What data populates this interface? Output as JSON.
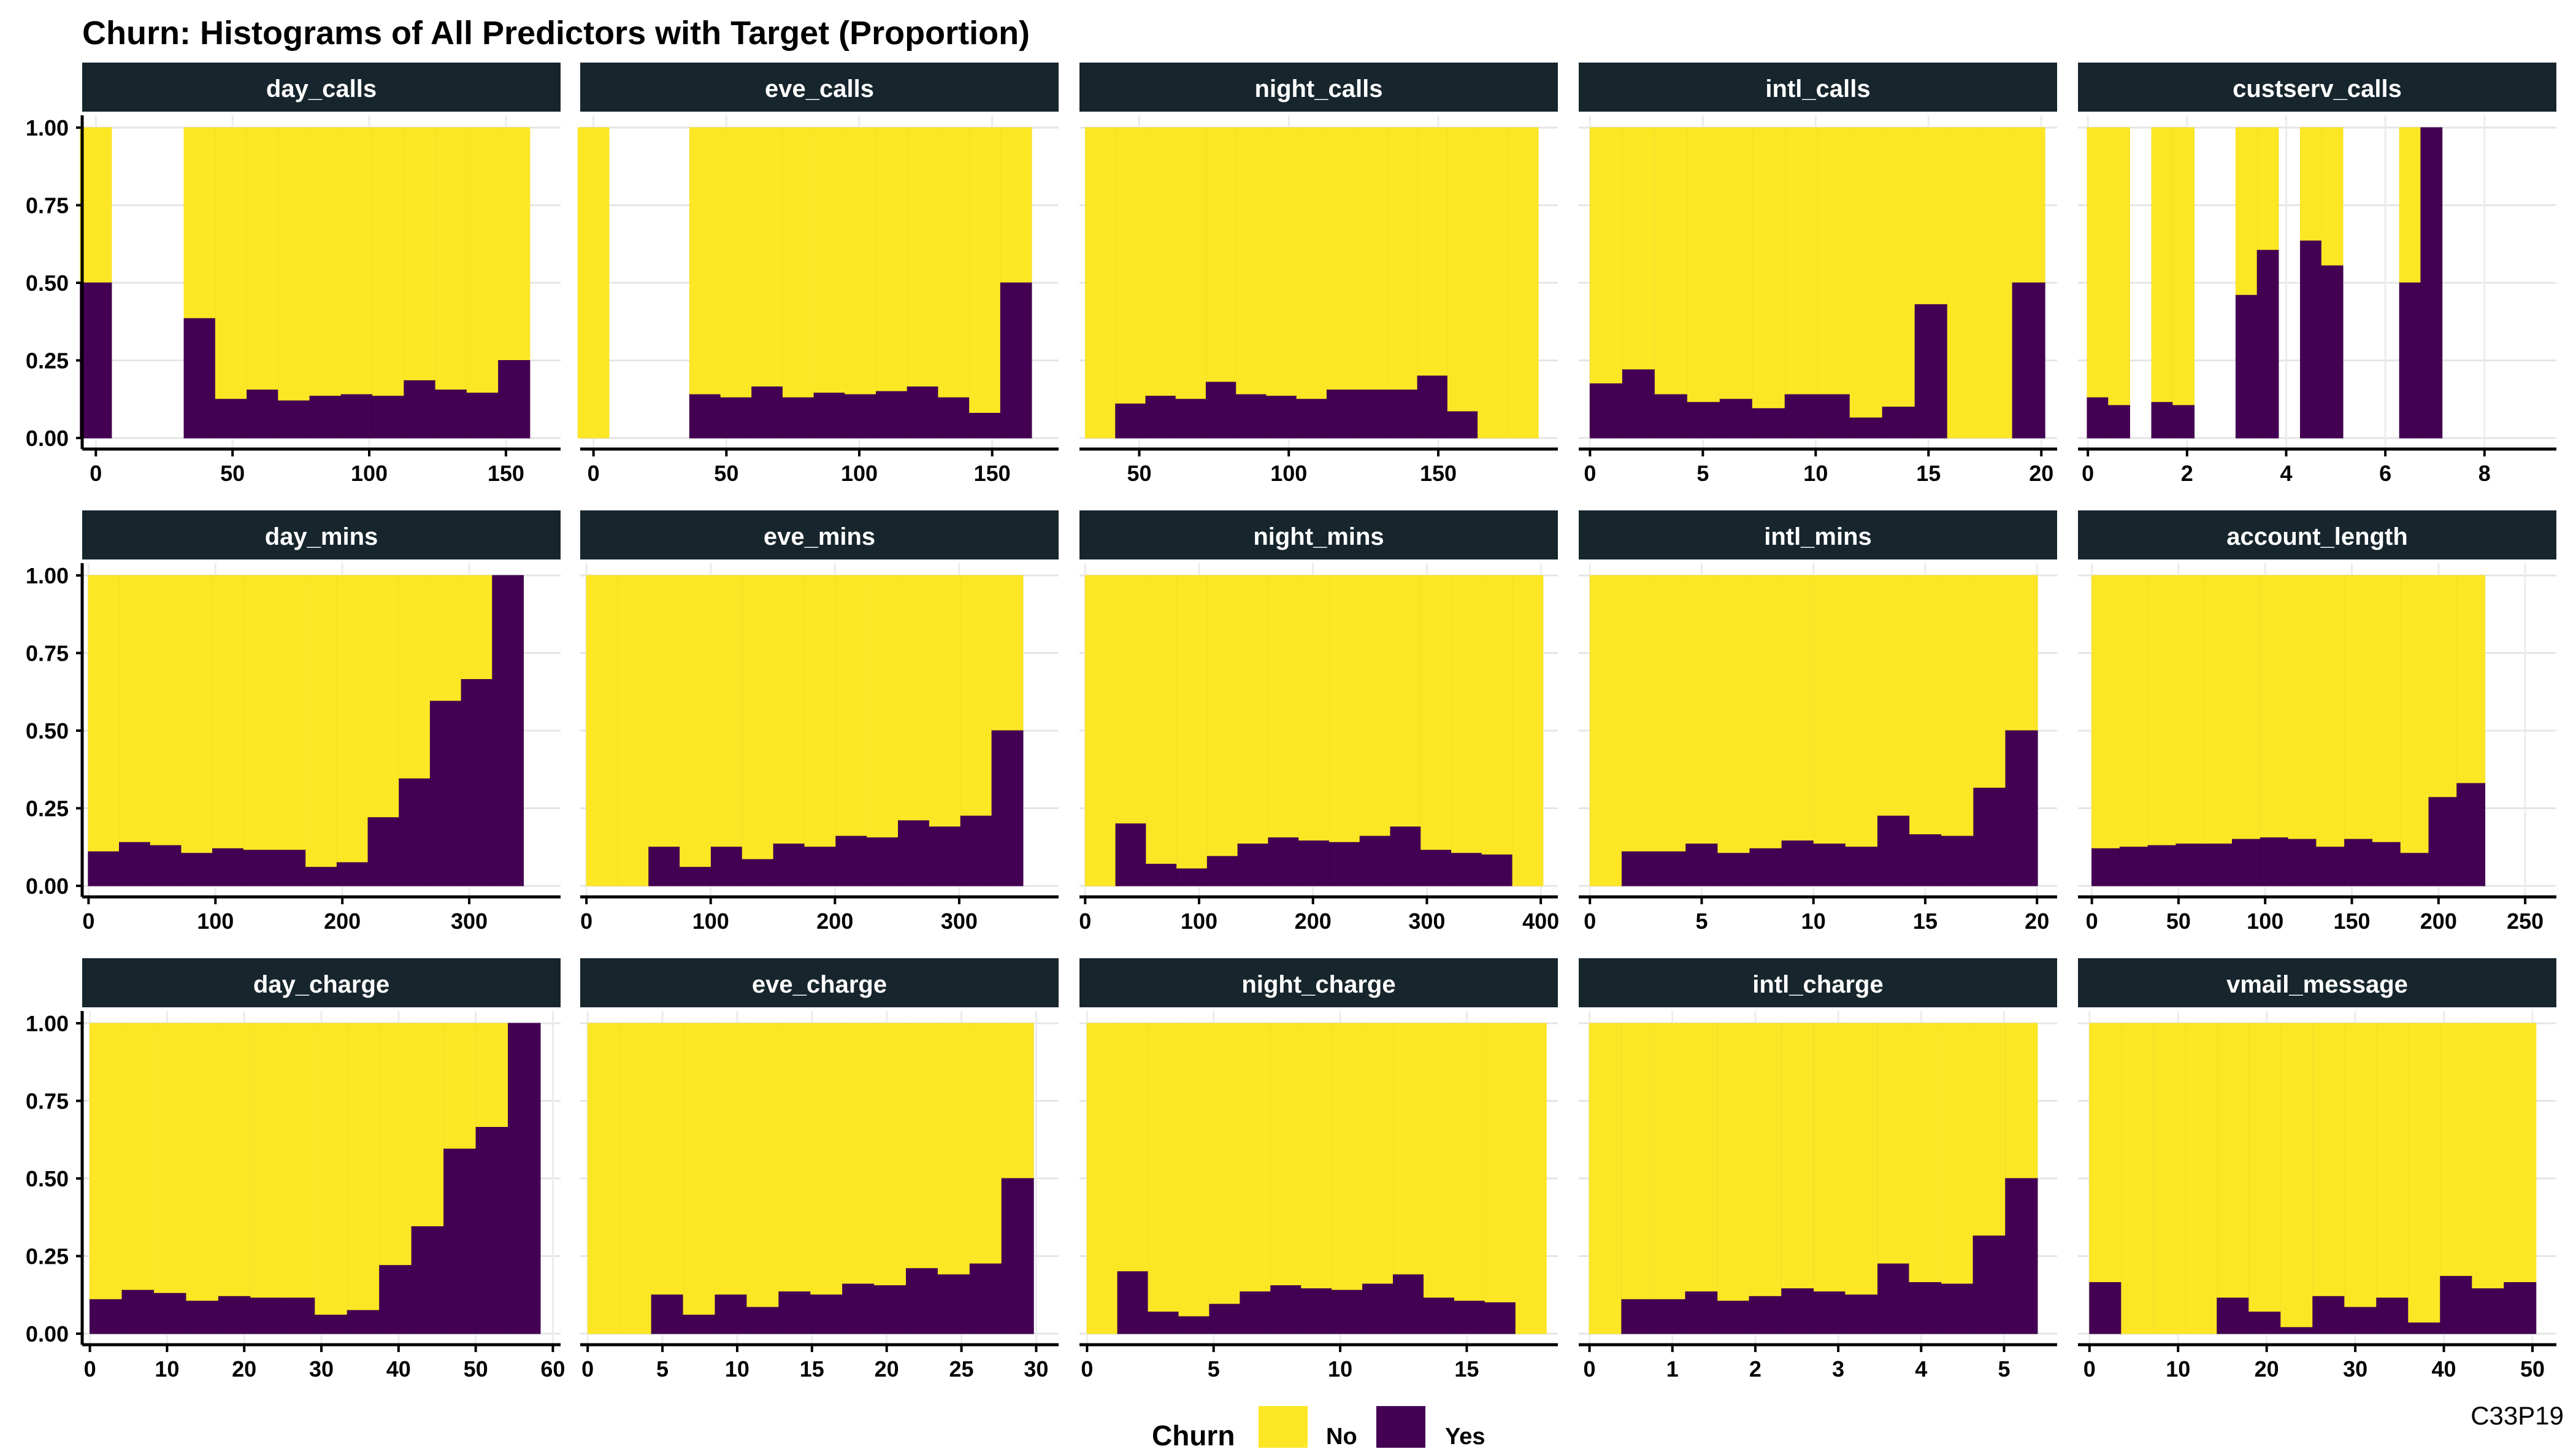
{
  "title": "Churn: Histograms of All Predictors with Target (Proportion)",
  "caption": "C33P19",
  "legend": {
    "title": "Churn",
    "items": [
      {
        "label": "No",
        "color": "#FDE725"
      },
      {
        "label": "Yes",
        "color": "#440154"
      }
    ]
  },
  "chart_data": [
    {
      "type": "bar",
      "panel": "day_calls",
      "xlim": [
        -5,
        170
      ],
      "ylim": [
        0,
        1
      ],
      "xticks": [
        0,
        50,
        100,
        150
      ],
      "yticks": [
        0,
        0.25,
        0.5,
        0.75,
        1
      ],
      "bin_width": 11.5,
      "bins": [
        {
          "x": 0,
          "yes": 0.5
        },
        {
          "x": 38,
          "yes": 0.385
        },
        {
          "x": 49.5,
          "yes": 0.125
        },
        {
          "x": 61,
          "yes": 0.155
        },
        {
          "x": 72.5,
          "yes": 0.12
        },
        {
          "x": 84,
          "yes": 0.135
        },
        {
          "x": 95.5,
          "yes": 0.14
        },
        {
          "x": 107,
          "yes": 0.135
        },
        {
          "x": 118.5,
          "yes": 0.185
        },
        {
          "x": 130,
          "yes": 0.155
        },
        {
          "x": 141.5,
          "yes": 0.145
        },
        {
          "x": 153,
          "yes": 0.25
        }
      ]
    },
    {
      "type": "bar",
      "panel": "eve_calls",
      "xlim": [
        -5,
        175
      ],
      "ylim": [
        0,
        1
      ],
      "xticks": [
        0,
        50,
        100,
        150
      ],
      "yticks": [
        0,
        0.25,
        0.5,
        0.75,
        1
      ],
      "bin_width": 11.7,
      "bins": [
        {
          "x": 0,
          "yes": 0.0
        },
        {
          "x": 42,
          "yes": 0.14
        },
        {
          "x": 53.7,
          "yes": 0.13
        },
        {
          "x": 65.4,
          "yes": 0.165
        },
        {
          "x": 77.1,
          "yes": 0.13
        },
        {
          "x": 88.8,
          "yes": 0.145
        },
        {
          "x": 100.5,
          "yes": 0.14
        },
        {
          "x": 112.2,
          "yes": 0.15
        },
        {
          "x": 123.9,
          "yes": 0.165
        },
        {
          "x": 135.6,
          "yes": 0.13
        },
        {
          "x": 147.3,
          "yes": 0.08
        },
        {
          "x": 159,
          "yes": 0.5
        }
      ]
    },
    {
      "type": "bar",
      "panel": "night_calls",
      "xlim": [
        30,
        190
      ],
      "ylim": [
        0,
        1
      ],
      "xticks": [
        50,
        100,
        150
      ],
      "yticks": [
        0,
        0.25,
        0.5,
        0.75,
        1
      ],
      "bin_width": 10.1,
      "bins": [
        {
          "x": 37,
          "yes": 0.0
        },
        {
          "x": 47.1,
          "yes": 0.11
        },
        {
          "x": 57.2,
          "yes": 0.135
        },
        {
          "x": 67.3,
          "yes": 0.125
        },
        {
          "x": 77.4,
          "yes": 0.18
        },
        {
          "x": 87.5,
          "yes": 0.14
        },
        {
          "x": 97.6,
          "yes": 0.135
        },
        {
          "x": 107.7,
          "yes": 0.125
        },
        {
          "x": 117.8,
          "yes": 0.155
        },
        {
          "x": 127.9,
          "yes": 0.155
        },
        {
          "x": 138,
          "yes": 0.155
        },
        {
          "x": 148.1,
          "yes": 0.2
        },
        {
          "x": 158.2,
          "yes": 0.085
        },
        {
          "x": 168.3,
          "yes": 0.0
        },
        {
          "x": 178.4,
          "yes": 0.0
        }
      ]
    },
    {
      "type": "bar",
      "panel": "intl_calls",
      "xlim": [
        -0.5,
        20.7
      ],
      "ylim": [
        0,
        1
      ],
      "xticks": [
        0,
        5,
        10,
        15,
        20
      ],
      "yticks": [
        0,
        0.25,
        0.5,
        0.75,
        1
      ],
      "bin_width": 1.44,
      "bins": [
        {
          "x": 0.72,
          "yes": 0.175
        },
        {
          "x": 2.16,
          "yes": 0.22
        },
        {
          "x": 3.6,
          "yes": 0.14
        },
        {
          "x": 5.04,
          "yes": 0.115
        },
        {
          "x": 6.48,
          "yes": 0.125
        },
        {
          "x": 7.92,
          "yes": 0.095
        },
        {
          "x": 9.36,
          "yes": 0.14
        },
        {
          "x": 10.8,
          "yes": 0.14
        },
        {
          "x": 12.24,
          "yes": 0.065
        },
        {
          "x": 13.68,
          "yes": 0.1
        },
        {
          "x": 15.12,
          "yes": 0.43
        },
        {
          "x": 16.56,
          "yes": 0.0
        },
        {
          "x": 18,
          "yes": 0.0
        },
        {
          "x": 19.44,
          "yes": 0.5
        }
      ]
    },
    {
      "type": "bar",
      "panel": "custserv_calls",
      "xlim": [
        -0.2,
        9.45
      ],
      "ylim": [
        0,
        1
      ],
      "xticks": [
        0,
        2,
        4,
        6,
        8
      ],
      "yticks": [
        0,
        0.25,
        0.5,
        0.75,
        1
      ],
      "bin_width": 0.43,
      "bins": [
        {
          "x": 0.2,
          "yes": 0.13
        },
        {
          "x": 0.63,
          "yes": 0.105
        },
        {
          "x": 1.5,
          "yes": 0.115
        },
        {
          "x": 1.93,
          "yes": 0.105
        },
        {
          "x": 3.2,
          "yes": 0.46
        },
        {
          "x": 3.63,
          "yes": 0.605
        },
        {
          "x": 4.5,
          "yes": 0.635
        },
        {
          "x": 4.93,
          "yes": 0.555
        },
        {
          "x": 6.5,
          "yes": 0.5
        },
        {
          "x": 6.93,
          "yes": 1.0
        }
      ]
    },
    {
      "type": "bar",
      "panel": "day_mins",
      "xlim": [
        -5,
        372
      ],
      "ylim": [
        0,
        1
      ],
      "xticks": [
        0,
        100,
        200,
        300
      ],
      "yticks": [
        0,
        0.25,
        0.5,
        0.75,
        1
      ],
      "bin_width": 24.5,
      "bins": [
        {
          "x": 12,
          "yes": 0.11
        },
        {
          "x": 36.5,
          "yes": 0.14
        },
        {
          "x": 61,
          "yes": 0.13
        },
        {
          "x": 85.5,
          "yes": 0.105
        },
        {
          "x": 110,
          "yes": 0.12
        },
        {
          "x": 134.5,
          "yes": 0.115
        },
        {
          "x": 159,
          "yes": 0.115
        },
        {
          "x": 183.5,
          "yes": 0.06
        },
        {
          "x": 208,
          "yes": 0.075
        },
        {
          "x": 232.5,
          "yes": 0.22
        },
        {
          "x": 257,
          "yes": 0.345
        },
        {
          "x": 281.5,
          "yes": 0.595
        },
        {
          "x": 306,
          "yes": 0.665
        },
        {
          "x": 330.5,
          "yes": 1.0
        }
      ]
    },
    {
      "type": "bar",
      "panel": "eve_mins",
      "xlim": [
        -5,
        380
      ],
      "ylim": [
        0,
        1
      ],
      "xticks": [
        0,
        100,
        200,
        300
      ],
      "yticks": [
        0,
        0.25,
        0.5,
        0.75,
        1
      ],
      "bin_width": 25.1,
      "bins": [
        {
          "x": 12.5,
          "yes": 0.0
        },
        {
          "x": 37.6,
          "yes": 0.0
        },
        {
          "x": 62.7,
          "yes": 0.125
        },
        {
          "x": 87.8,
          "yes": 0.06
        },
        {
          "x": 112.9,
          "yes": 0.125
        },
        {
          "x": 138,
          "yes": 0.085
        },
        {
          "x": 163.1,
          "yes": 0.135
        },
        {
          "x": 188.2,
          "yes": 0.125
        },
        {
          "x": 213.3,
          "yes": 0.16
        },
        {
          "x": 238.4,
          "yes": 0.155
        },
        {
          "x": 263.5,
          "yes": 0.21
        },
        {
          "x": 288.6,
          "yes": 0.19
        },
        {
          "x": 313.7,
          "yes": 0.225
        },
        {
          "x": 338.8,
          "yes": 0.5
        }
      ]
    },
    {
      "type": "bar",
      "panel": "night_mins",
      "xlim": [
        -5,
        415
      ],
      "ylim": [
        0,
        1
      ],
      "xticks": [
        0,
        100,
        200,
        300,
        400
      ],
      "yticks": [
        0,
        0.25,
        0.5,
        0.75,
        1
      ],
      "bin_width": 26.8,
      "bins": [
        {
          "x": 13.4,
          "yes": 0.0
        },
        {
          "x": 40.2,
          "yes": 0.2
        },
        {
          "x": 67,
          "yes": 0.07
        },
        {
          "x": 93.8,
          "yes": 0.055
        },
        {
          "x": 120.6,
          "yes": 0.095
        },
        {
          "x": 147.4,
          "yes": 0.135
        },
        {
          "x": 174.2,
          "yes": 0.155
        },
        {
          "x": 201,
          "yes": 0.145
        },
        {
          "x": 227.8,
          "yes": 0.14
        },
        {
          "x": 254.6,
          "yes": 0.16
        },
        {
          "x": 281.4,
          "yes": 0.19
        },
        {
          "x": 308.2,
          "yes": 0.115
        },
        {
          "x": 335,
          "yes": 0.105
        },
        {
          "x": 361.8,
          "yes": 0.1
        },
        {
          "x": 388.6,
          "yes": 0.0
        }
      ]
    },
    {
      "type": "bar",
      "panel": "intl_mins",
      "xlim": [
        -0.5,
        20.9
      ],
      "ylim": [
        0,
        1
      ],
      "xticks": [
        0,
        5,
        10,
        15,
        20
      ],
      "yticks": [
        0,
        0.25,
        0.5,
        0.75,
        1
      ],
      "bin_width": 1.43,
      "bins": [
        {
          "x": 0.72,
          "yes": 0.0
        },
        {
          "x": 2.15,
          "yes": 0.11
        },
        {
          "x": 3.58,
          "yes": 0.11
        },
        {
          "x": 5.01,
          "yes": 0.135
        },
        {
          "x": 6.44,
          "yes": 0.105
        },
        {
          "x": 7.87,
          "yes": 0.12
        },
        {
          "x": 9.3,
          "yes": 0.145
        },
        {
          "x": 10.73,
          "yes": 0.135
        },
        {
          "x": 12.16,
          "yes": 0.125
        },
        {
          "x": 13.59,
          "yes": 0.225
        },
        {
          "x": 15.02,
          "yes": 0.165
        },
        {
          "x": 16.45,
          "yes": 0.16
        },
        {
          "x": 17.88,
          "yes": 0.315
        },
        {
          "x": 19.31,
          "yes": 0.5
        }
      ]
    },
    {
      "type": "bar",
      "panel": "account_length",
      "xlim": [
        -8,
        268
      ],
      "ylim": [
        0,
        1
      ],
      "xticks": [
        0,
        50,
        100,
        150,
        200,
        250
      ],
      "yticks": [
        0,
        0.25,
        0.5,
        0.75,
        1
      ],
      "bin_width": 16.2,
      "bins": [
        {
          "x": 8.1,
          "yes": 0.12
        },
        {
          "x": 24.3,
          "yes": 0.125
        },
        {
          "x": 40.5,
          "yes": 0.13
        },
        {
          "x": 56.7,
          "yes": 0.135
        },
        {
          "x": 72.9,
          "yes": 0.135
        },
        {
          "x": 89.1,
          "yes": 0.15
        },
        {
          "x": 105.3,
          "yes": 0.155
        },
        {
          "x": 121.5,
          "yes": 0.15
        },
        {
          "x": 137.7,
          "yes": 0.125
        },
        {
          "x": 153.9,
          "yes": 0.15
        },
        {
          "x": 170.1,
          "yes": 0.14
        },
        {
          "x": 186.3,
          "yes": 0.105
        },
        {
          "x": 202.5,
          "yes": 0.285
        },
        {
          "x": 218.7,
          "yes": 0.33
        }
      ]
    },
    {
      "type": "bar",
      "panel": "day_charge",
      "xlim": [
        -1,
        61
      ],
      "ylim": [
        0,
        1
      ],
      "xticks": [
        0,
        10,
        20,
        30,
        40,
        50,
        60
      ],
      "yticks": [
        0,
        0.25,
        0.5,
        0.75,
        1
      ],
      "bin_width": 4.17,
      "bins": [
        {
          "x": 2.08,
          "yes": 0.11
        },
        {
          "x": 6.25,
          "yes": 0.14
        },
        {
          "x": 10.42,
          "yes": 0.13
        },
        {
          "x": 14.59,
          "yes": 0.105
        },
        {
          "x": 18.76,
          "yes": 0.12
        },
        {
          "x": 22.93,
          "yes": 0.115
        },
        {
          "x": 27.1,
          "yes": 0.115
        },
        {
          "x": 31.27,
          "yes": 0.06
        },
        {
          "x": 35.44,
          "yes": 0.075
        },
        {
          "x": 39.61,
          "yes": 0.22
        },
        {
          "x": 43.78,
          "yes": 0.345
        },
        {
          "x": 47.95,
          "yes": 0.595
        },
        {
          "x": 52.12,
          "yes": 0.665
        },
        {
          "x": 56.29,
          "yes": 1.0
        }
      ]
    },
    {
      "type": "bar",
      "panel": "eve_charge",
      "xlim": [
        -0.5,
        31.5
      ],
      "ylim": [
        0,
        1
      ],
      "xticks": [
        0,
        5,
        10,
        15,
        20,
        25,
        30
      ],
      "yticks": [
        0,
        0.25,
        0.5,
        0.75,
        1
      ],
      "bin_width": 2.13,
      "bins": [
        {
          "x": 1.07,
          "yes": 0.0
        },
        {
          "x": 3.2,
          "yes": 0.0
        },
        {
          "x": 5.33,
          "yes": 0.125
        },
        {
          "x": 7.46,
          "yes": 0.06
        },
        {
          "x": 9.59,
          "yes": 0.125
        },
        {
          "x": 11.72,
          "yes": 0.085
        },
        {
          "x": 13.85,
          "yes": 0.135
        },
        {
          "x": 15.98,
          "yes": 0.125
        },
        {
          "x": 18.11,
          "yes": 0.16
        },
        {
          "x": 20.24,
          "yes": 0.155
        },
        {
          "x": 22.37,
          "yes": 0.21
        },
        {
          "x": 24.5,
          "yes": 0.19
        },
        {
          "x": 26.63,
          "yes": 0.225
        },
        {
          "x": 28.76,
          "yes": 0.5
        }
      ]
    },
    {
      "type": "bar",
      "panel": "night_charge",
      "xlim": [
        -0.3,
        18.6
      ],
      "ylim": [
        0,
        1
      ],
      "xticks": [
        0,
        5,
        10,
        15
      ],
      "yticks": [
        0,
        0.25,
        0.5,
        0.75,
        1
      ],
      "bin_width": 1.21,
      "bins": [
        {
          "x": 0.6,
          "yes": 0.0
        },
        {
          "x": 1.81,
          "yes": 0.2
        },
        {
          "x": 3.02,
          "yes": 0.07
        },
        {
          "x": 4.23,
          "yes": 0.055
        },
        {
          "x": 5.44,
          "yes": 0.095
        },
        {
          "x": 6.65,
          "yes": 0.135
        },
        {
          "x": 7.86,
          "yes": 0.155
        },
        {
          "x": 9.07,
          "yes": 0.145
        },
        {
          "x": 10.28,
          "yes": 0.14
        },
        {
          "x": 11.49,
          "yes": 0.16
        },
        {
          "x": 12.7,
          "yes": 0.19
        },
        {
          "x": 13.91,
          "yes": 0.115
        },
        {
          "x": 15.12,
          "yes": 0.105
        },
        {
          "x": 16.33,
          "yes": 0.1
        },
        {
          "x": 17.54,
          "yes": 0.0
        }
      ]
    },
    {
      "type": "bar",
      "panel": "intl_charge",
      "xlim": [
        -0.13,
        5.64
      ],
      "ylim": [
        0,
        1
      ],
      "xticks": [
        0,
        1,
        2,
        3,
        4,
        5
      ],
      "yticks": [
        0,
        0.25,
        0.5,
        0.75,
        1
      ],
      "bin_width": 0.386,
      "bins": [
        {
          "x": 0.19,
          "yes": 0.0
        },
        {
          "x": 0.58,
          "yes": 0.11
        },
        {
          "x": 0.97,
          "yes": 0.11
        },
        {
          "x": 1.35,
          "yes": 0.135
        },
        {
          "x": 1.74,
          "yes": 0.105
        },
        {
          "x": 2.12,
          "yes": 0.12
        },
        {
          "x": 2.51,
          "yes": 0.145
        },
        {
          "x": 2.9,
          "yes": 0.135
        },
        {
          "x": 3.28,
          "yes": 0.125
        },
        {
          "x": 3.67,
          "yes": 0.225
        },
        {
          "x": 4.05,
          "yes": 0.165
        },
        {
          "x": 4.44,
          "yes": 0.16
        },
        {
          "x": 4.82,
          "yes": 0.315
        },
        {
          "x": 5.21,
          "yes": 0.5
        }
      ]
    },
    {
      "type": "bar",
      "panel": "vmail_message",
      "xlim": [
        -1.3,
        52.7
      ],
      "ylim": [
        0,
        1
      ],
      "xticks": [
        0,
        10,
        20,
        30,
        40,
        50
      ],
      "yticks": [
        0,
        0.25,
        0.5,
        0.75,
        1
      ],
      "bin_width": 3.6,
      "bins": [
        {
          "x": 1.8,
          "yes": 0.165
        },
        {
          "x": 5.4,
          "yes": 0.0
        },
        {
          "x": 9,
          "yes": 0.0
        },
        {
          "x": 12.6,
          "yes": 0.0
        },
        {
          "x": 16.2,
          "yes": 0.115
        },
        {
          "x": 19.8,
          "yes": 0.07
        },
        {
          "x": 23.4,
          "yes": 0.02
        },
        {
          "x": 27,
          "yes": 0.12
        },
        {
          "x": 30.6,
          "yes": 0.085
        },
        {
          "x": 34.2,
          "yes": 0.115
        },
        {
          "x": 37.8,
          "yes": 0.035
        },
        {
          "x": 41.4,
          "yes": 0.185
        },
        {
          "x": 45,
          "yes": 0.145
        },
        {
          "x": 48.6,
          "yes": 0.165
        }
      ]
    }
  ]
}
